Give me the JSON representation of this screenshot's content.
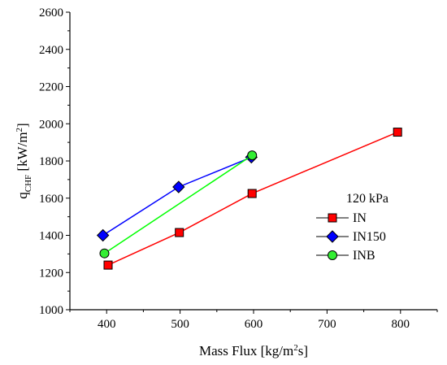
{
  "chart_data": {
    "type": "line",
    "xlabel": "Mass Flux [kg/m²s]",
    "ylabel": "q_CHF [kW/m²]",
    "xlim": [
      350,
      850
    ],
    "ylim": [
      1000,
      2600
    ],
    "xticks": [
      400,
      500,
      600,
      700,
      800
    ],
    "yticks": [
      1000,
      1200,
      1400,
      1600,
      1800,
      2000,
      2200,
      2400,
      2600
    ],
    "grid": false,
    "legend": {
      "title": "120 kPa",
      "placement": "right"
    },
    "series": [
      {
        "name": "IN",
        "marker": "square",
        "color": "#ff0000",
        "marker_color": "#ff0000",
        "points": [
          [
            402,
            1240
          ],
          [
            499,
            1415
          ],
          [
            598,
            1625
          ],
          [
            796,
            1955
          ]
        ]
      },
      {
        "name": "IN150",
        "marker": "diamond",
        "color": "#0000ff",
        "marker_color": "#0000ff",
        "points": [
          [
            395,
            1400
          ],
          [
            498,
            1660
          ],
          [
            597,
            1820
          ]
        ]
      },
      {
        "name": "INB",
        "marker": "circle",
        "color": "#00ff00",
        "marker_color": "#33ee33",
        "points": [
          [
            397,
            1303
          ],
          [
            598,
            1830
          ]
        ]
      }
    ]
  }
}
